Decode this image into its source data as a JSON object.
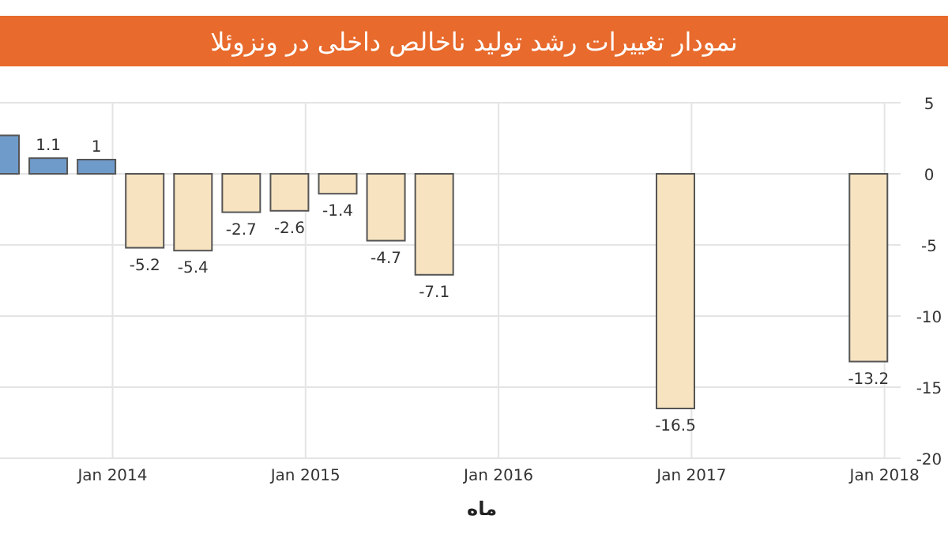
{
  "chart_data": {
    "type": "bar",
    "title": "نمودار تغییرات رشد تولید ناخالص داخلی در ونزوئلا",
    "xlabel": "ماه",
    "x": [
      "2013-06",
      "2013-09",
      "2013-12",
      "2014-03",
      "2014-06",
      "2014-09",
      "2014-12",
      "2015-03",
      "2015-06",
      "2015-09",
      "2016-12",
      "2017-12"
    ],
    "values": [
      2.7,
      1.1,
      1,
      -5.2,
      -5.4,
      -2.7,
      -2.6,
      -1.4,
      -4.7,
      -7.1,
      -16.5,
      -13.2
    ],
    "value_labels": [
      null,
      "1.1",
      "1",
      "-5.2",
      "-5.4",
      "-2.7",
      "-2.6",
      "-1.4",
      "-4.7",
      "-7.1",
      "-16.5",
      "-13.2"
    ],
    "colors": [
      "#6f9bcb",
      "#6f9bcb",
      "#6f9bcb",
      "#f7e3c0",
      "#f7e3c0",
      "#f7e3c0",
      "#f7e3c0",
      "#f7e3c0",
      "#f7e3c0",
      "#f7e3c0",
      "#f7e3c0",
      "#f7e3c0"
    ],
    "xlim": [
      "2013-06",
      "2018-02"
    ],
    "xticks": [
      {
        "value": "2014-01",
        "label": "Jan 2014"
      },
      {
        "value": "2015-01",
        "label": "Jan 2015"
      },
      {
        "value": "2016-01",
        "label": "Jan 2016"
      },
      {
        "value": "2017-01",
        "label": "Jan 2017"
      },
      {
        "value": "2018-01",
        "label": "Jan 2018"
      }
    ],
    "ylim": [
      -20,
      5
    ],
    "yticks": [
      -20,
      -15,
      -10,
      -5,
      0,
      5
    ],
    "grid": true
  }
}
